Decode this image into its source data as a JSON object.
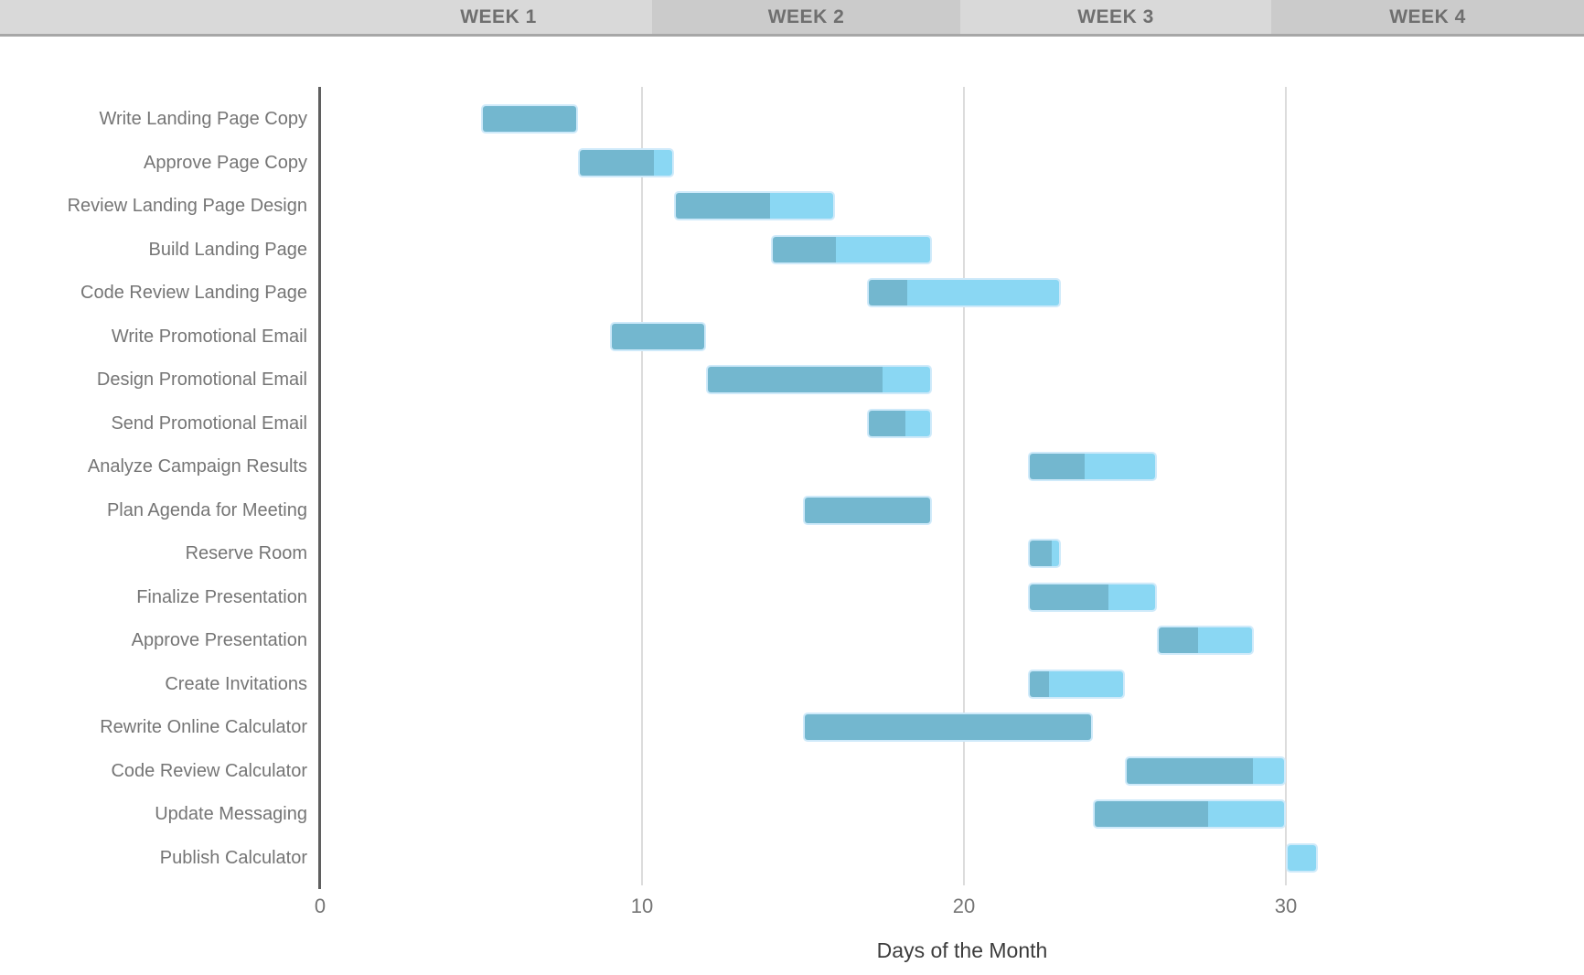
{
  "header": {
    "weeks": [
      {
        "label": "WEEK 1"
      },
      {
        "label": "WEEK 2"
      },
      {
        "label": "WEEK 3"
      },
      {
        "label": "WEEK 4"
      }
    ]
  },
  "chart_data": {
    "type": "bar",
    "subtype": "gantt",
    "orientation": "horizontal",
    "title": "",
    "xlabel": "Days of the Month",
    "ylabel": "",
    "x_ticks": [
      0,
      10,
      20,
      30
    ],
    "xlim": [
      0,
      39
    ],
    "grid": "vertical gridlines at 10, 20, 30",
    "legend": "none",
    "segments_meaning": {
      "completed": "dark blue-teal left segment (start to complete_until)",
      "remaining": "light blue right segment (complete_until to end)"
    },
    "tasks": [
      {
        "label": "Write Landing Page Copy",
        "start": 5,
        "end": 8,
        "complete_until": 8
      },
      {
        "label": "Approve Page Copy",
        "start": 8,
        "end": 11,
        "complete_until": 10.4
      },
      {
        "label": "Review Landing Page Design",
        "start": 11,
        "end": 16,
        "complete_until": 14
      },
      {
        "label": "Build Landing Page",
        "start": 14,
        "end": 19,
        "complete_until": 16
      },
      {
        "label": "Code Review Landing Page",
        "start": 17,
        "end": 23,
        "complete_until": 18.2
      },
      {
        "label": "Write Promotional Email",
        "start": 9,
        "end": 12,
        "complete_until": 12
      },
      {
        "label": "Design Promotional Email",
        "start": 12,
        "end": 19,
        "complete_until": 17.5
      },
      {
        "label": "Send Promotional Email",
        "start": 17,
        "end": 19,
        "complete_until": 18.2
      },
      {
        "label": "Analyze Campaign Results",
        "start": 22,
        "end": 26,
        "complete_until": 23.75
      },
      {
        "label": "Plan Agenda for Meeting",
        "start": 15,
        "end": 19,
        "complete_until": 19
      },
      {
        "label": "Reserve Room",
        "start": 22,
        "end": 23,
        "complete_until": 22.75
      },
      {
        "label": "Finalize Presentation",
        "start": 22,
        "end": 26,
        "complete_until": 24.5
      },
      {
        "label": "Approve Presentation",
        "start": 26,
        "end": 29,
        "complete_until": 27.25
      },
      {
        "label": "Create Invitations",
        "start": 22,
        "end": 25,
        "complete_until": 22.6
      },
      {
        "label": "Rewrite Online Calculator",
        "start": 15,
        "end": 24,
        "complete_until": 24
      },
      {
        "label": "Code Review Calculator",
        "start": 25,
        "end": 30,
        "complete_until": 29
      },
      {
        "label": "Update Messaging",
        "start": 24,
        "end": 30,
        "complete_until": 27.6
      },
      {
        "label": "Publish Calculator",
        "start": 30,
        "end": 31,
        "complete_until": 30
      }
    ]
  },
  "colors": {
    "bar_completed": "#73b7cf",
    "bar_remaining": "#8ad7f3",
    "bar_outline": "#cfeafa",
    "header_light": "#d9d9d9",
    "header_dark": "#cbcbcb",
    "header_border": "#a7a7a7",
    "axis_line": "#5f5f5f",
    "gridline": "#dcdcdc",
    "label_text": "#757575",
    "axis_title_text": "#3c3c3c",
    "week_text": "#6f6f6f"
  }
}
